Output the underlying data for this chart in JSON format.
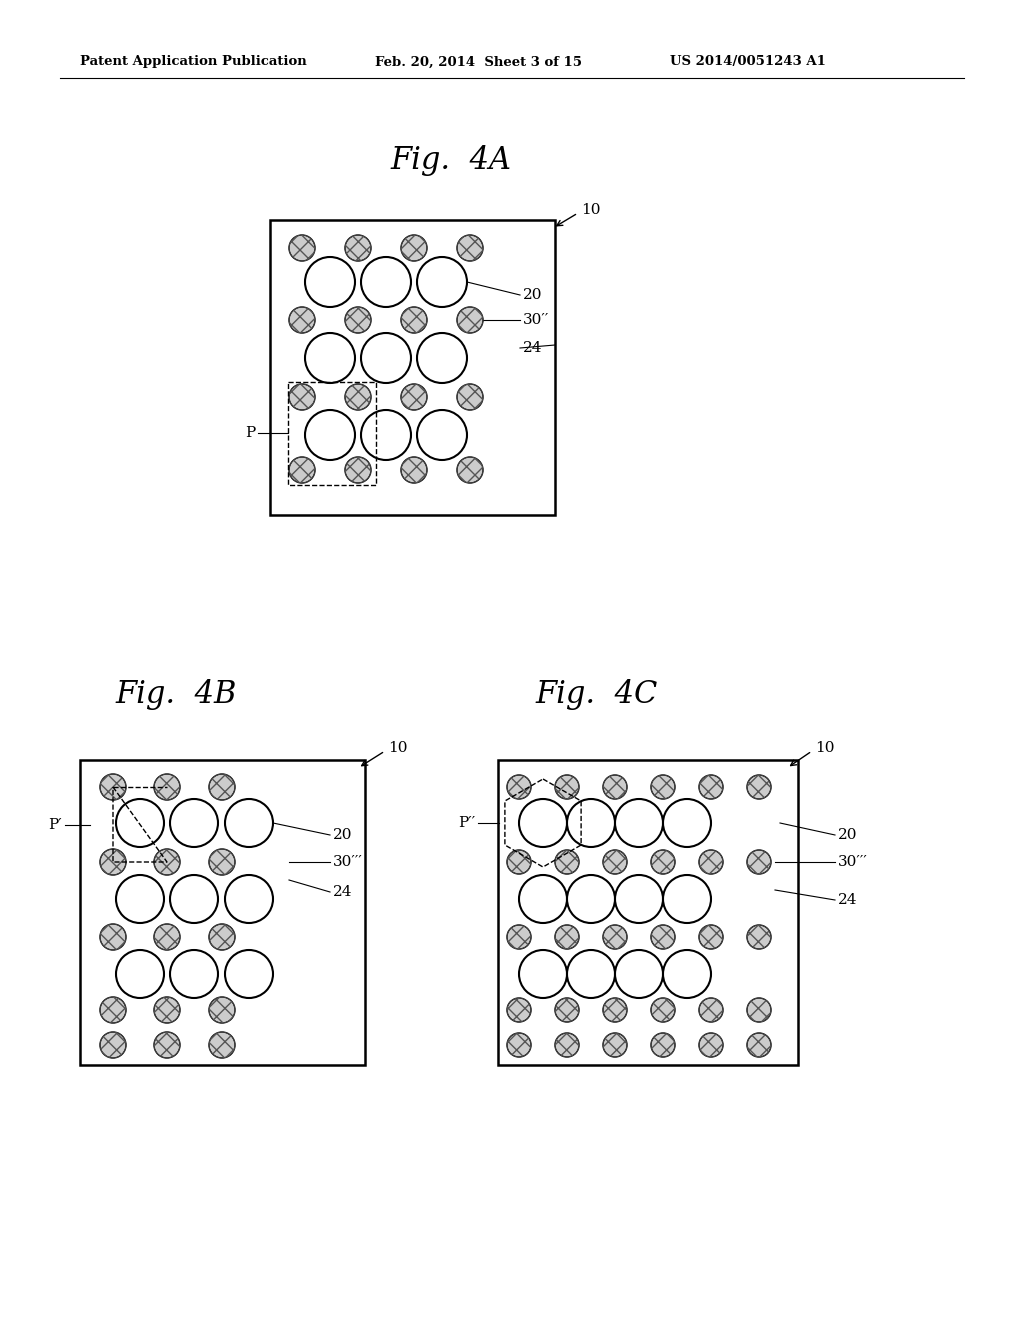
{
  "header_left": "Patent Application Publication",
  "header_mid": "Feb. 20, 2014  Sheet 3 of 15",
  "header_right": "US 2014/0051243 A1",
  "fig4A_title": "Fig.  4A",
  "fig4B_title": "Fig.  4B",
  "fig4C_title": "Fig.  4C",
  "bg_color": "#ffffff",
  "label_20": "20",
  "label_30pp": "30′′",
  "label_30ppp": "30′′′",
  "label_24": "24",
  "label_10": "10",
  "label_P": "P",
  "label_Pp": "P′",
  "label_Ppp": "P′′"
}
